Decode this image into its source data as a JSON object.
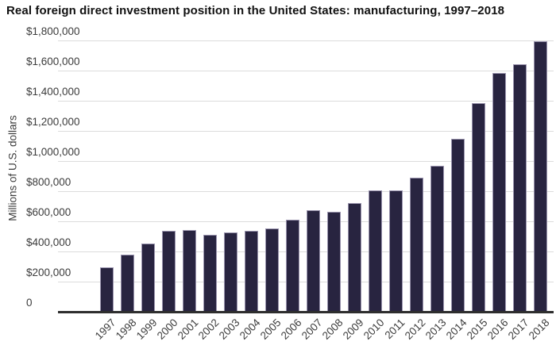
{
  "chart_data": {
    "type": "bar",
    "title": "Real foreign direct investment position in the United States: manufacturing, 1997–2018",
    "ylabel": "Millions of U.S. dollars",
    "xlabel": "",
    "categories": [
      "1997",
      "1998",
      "1999",
      "2000",
      "2001",
      "2002",
      "2003",
      "2004",
      "2005",
      "2006",
      "2007",
      "2008",
      "2009",
      "2010",
      "2011",
      "2012",
      "2013",
      "2014",
      "2015",
      "2016",
      "2017",
      "2018"
    ],
    "values": [
      295000,
      380000,
      455000,
      535000,
      540000,
      510000,
      525000,
      535000,
      555000,
      610000,
      675000,
      665000,
      720000,
      805000,
      805000,
      890000,
      970000,
      1145000,
      1385000,
      1585000,
      1640000,
      1795000
    ],
    "ylim": [
      0,
      1800000
    ],
    "y_ticks": [
      {
        "value": 1800000,
        "label": "$1,800,000"
      },
      {
        "value": 1600000,
        "label": "$1,600,000"
      },
      {
        "value": 1400000,
        "label": "$1,400,000"
      },
      {
        "value": 1200000,
        "label": "$1,200,000"
      },
      {
        "value": 1000000,
        "label": "$1,000,000"
      },
      {
        "value": 800000,
        "label": "$800,000"
      },
      {
        "value": 600000,
        "label": "$600,000"
      },
      {
        "value": 400000,
        "label": "$400,000"
      },
      {
        "value": 200000,
        "label": "$200,000"
      },
      {
        "value": 0,
        "label": "0"
      }
    ],
    "grid": true,
    "legend": "none",
    "colors": {
      "bar_fill": "#282440",
      "bar_border": "#9a94ae",
      "gridline": "#dcdcdc",
      "axis_line": "#2e2e2e",
      "title_text": "#111111",
      "label_text": "#3c3c3c"
    }
  }
}
